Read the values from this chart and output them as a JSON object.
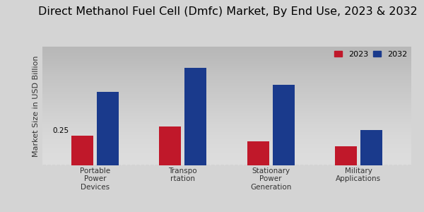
{
  "title": "Direct Methanol Fuel Cell (Dmfc) Market, By End Use, 2023 & 2032",
  "ylabel": "Market Size in USD Billion",
  "categories": [
    "Portable\nPower\nDevices",
    "Transpo\nrtation",
    "Stationary\nPower\nGeneration",
    "Military\nApplications"
  ],
  "values_2023": [
    0.25,
    0.33,
    0.2,
    0.16
  ],
  "values_2032": [
    0.62,
    0.82,
    0.68,
    0.3
  ],
  "color_2023": "#c0182a",
  "color_2032": "#1a3a8c",
  "annotation_text": "0.25",
  "background_color_top": "#d8d8d8",
  "background_color_bottom": "#e8e8e8",
  "legend_labels": [
    "2023",
    "2032"
  ],
  "bar_width": 0.25,
  "ylim": [
    0,
    1.0
  ],
  "title_fontsize": 11.5,
  "ylabel_fontsize": 8,
  "tick_fontsize": 7.5,
  "legend_fontsize": 8
}
